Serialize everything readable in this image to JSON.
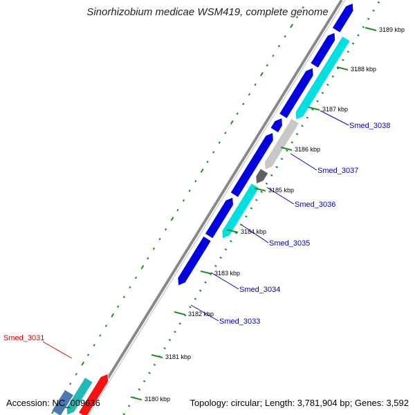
{
  "title": "Sinorhizobium medicae WSM419, complete genome",
  "footer": {
    "accession": "Accession: NC_009636",
    "summary": "Topology: circular; Length: 3,781,904 bp; Genes: 3,592"
  },
  "scale_ticks": [
    "3180 kbp",
    "3181 kbp",
    "3182 kbp",
    "3183 kbp",
    "3184 kbp",
    "3185 kbp",
    "3186 kbp",
    "3187 kbp",
    "3188 kbp",
    "3189 kbp"
  ],
  "gene_labels": [
    {
      "name": "Smed_3031",
      "color": "#e00000"
    },
    {
      "name": "Smed_3033",
      "color": "#0000c0"
    },
    {
      "name": "Smed_3034",
      "color": "#0000c0"
    },
    {
      "name": "Smed_3035",
      "color": "#0000c0"
    },
    {
      "name": "Smed_3036",
      "color": "#0000c0"
    },
    {
      "name": "Smed_3037",
      "color": "#0000c0"
    },
    {
      "name": "Smed_3038",
      "color": "#0000c0"
    }
  ],
  "colors": {
    "backbone": "#888888",
    "cds_forward": "#0000e0",
    "cds_reverse": "#00e0e0",
    "cds_teal": "#20b8b8",
    "cds_red": "#ff1010",
    "pseudo_gray": "#c8c8c8",
    "dark_gray": "#606060",
    "tick_green": "#228b22"
  }
}
